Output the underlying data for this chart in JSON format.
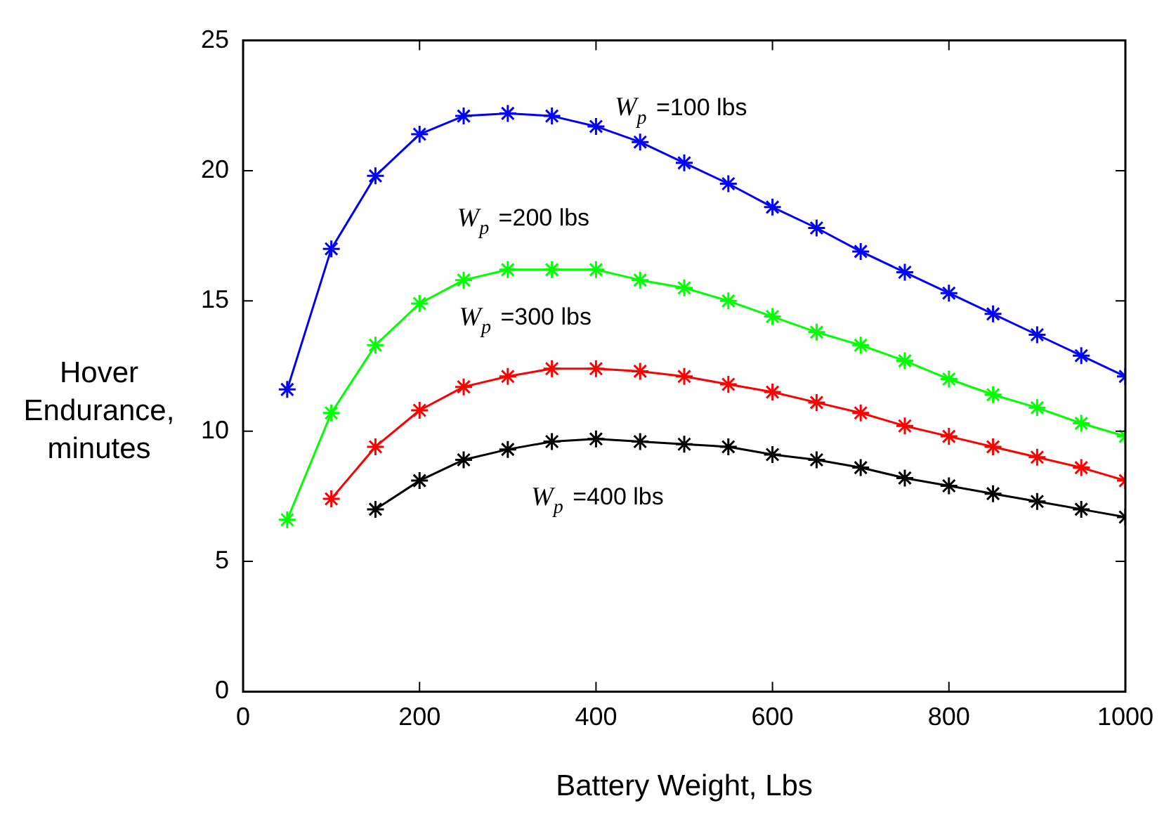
{
  "chart_data": {
    "type": "line",
    "xlabel": "Battery Weight, Lbs",
    "ylabel": "Hover Endurance, minutes",
    "xlim": [
      0,
      1000
    ],
    "xticks": [
      0,
      200,
      400,
      600,
      800,
      1000
    ],
    "ylim": [
      0,
      25
    ],
    "yticks": [
      0,
      5,
      10,
      15,
      20,
      25
    ],
    "grid": false,
    "legend": false,
    "marker": "cross",
    "line_style": "solid",
    "series": [
      {
        "name": "W$_{p}$ =100 lbs",
        "color": "#0000ff",
        "x": [
          50,
          100,
          150,
          200,
          250,
          300,
          350,
          400,
          450,
          500,
          550,
          600,
          650,
          700,
          750,
          800,
          850,
          900,
          950,
          1000
        ],
        "values": [
          11.6,
          17.0,
          19.8,
          21.4,
          22.1,
          22.2,
          22.1,
          21.7,
          21.1,
          20.3,
          19.5,
          18.6,
          17.8,
          16.9,
          16.1,
          15.3,
          14.5,
          13.7,
          12.9,
          12.1
        ]
      },
      {
        "name": "W$_{p}$ =200 lbs",
        "color": "#00ff00",
        "x": [
          50,
          100,
          150,
          200,
          250,
          300,
          350,
          400,
          450,
          500,
          550,
          600,
          650,
          700,
          750,
          800,
          850,
          900,
          950,
          1000
        ],
        "values": [
          6.6,
          10.7,
          13.3,
          14.9,
          15.8,
          16.2,
          16.2,
          16.2,
          15.8,
          15.5,
          15.0,
          14.4,
          13.8,
          13.3,
          12.7,
          12.0,
          11.4,
          10.9,
          10.3,
          9.8
        ]
      },
      {
        "name": "W$_{p}$ =300 lbs",
        "color": "#ff0000",
        "x": [
          100,
          150,
          200,
          250,
          300,
          350,
          400,
          450,
          500,
          550,
          600,
          650,
          700,
          750,
          800,
          850,
          900,
          950,
          1000
        ],
        "values": [
          7.4,
          9.4,
          10.8,
          11.7,
          12.1,
          12.4,
          12.4,
          12.3,
          12.1,
          11.8,
          11.5,
          11.1,
          10.7,
          10.2,
          9.8,
          9.4,
          9.0,
          8.6,
          8.1
        ]
      },
      {
        "name": "W$_{p}$ =400 lbs",
        "color": "#000000",
        "x": [
          150,
          200,
          250,
          300,
          350,
          400,
          450,
          500,
          550,
          600,
          650,
          700,
          750,
          800,
          850,
          900,
          950,
          1000
        ],
        "values": [
          7.0,
          8.1,
          8.9,
          9.3,
          9.6,
          9.7,
          9.6,
          9.5,
          9.4,
          9.1,
          8.9,
          8.6,
          8.2,
          7.9,
          7.6,
          7.3,
          7.0,
          6.7
        ]
      }
    ]
  }
}
